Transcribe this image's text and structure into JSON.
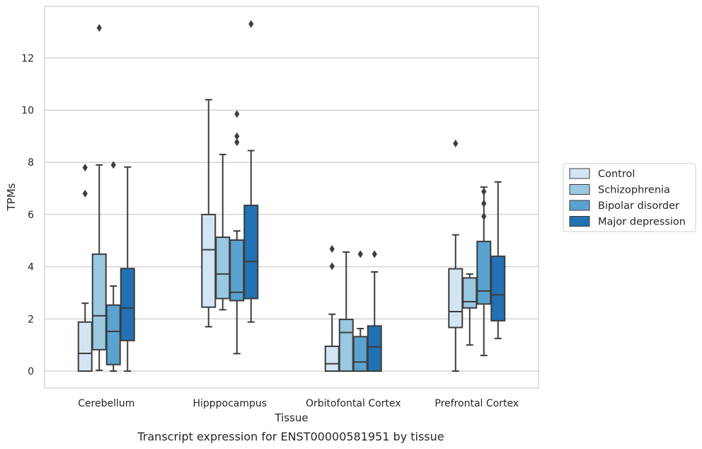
{
  "chart_data": {
    "type": "box",
    "caption": "Transcript expression for ENST00000581951 by tissue",
    "xlabel": "Tissue",
    "ylabel": "TPMs",
    "ylim": [
      -0.65,
      13.9
    ],
    "yticks": [
      "0",
      "2",
      "4",
      "6",
      "8",
      "10",
      "12"
    ],
    "grid": true,
    "legend_position": "right",
    "categories": [
      "Cerebellum",
      "Hipppocampus",
      "Orbitofontal Cortex",
      "Prefrontal Cortex"
    ],
    "series": [
      {
        "name": "Control",
        "color": "#d3e4f3",
        "boxes": [
          {
            "whisker_low": 0,
            "q1": 0,
            "median": 0.68,
            "q3": 1.88,
            "whisker_high": 2.6,
            "outliers": [
              6.8,
              7.8
            ]
          },
          {
            "whisker_low": 1.7,
            "q1": 2.45,
            "median": 4.65,
            "q3": 6.0,
            "whisker_high": 10.4,
            "outliers": []
          },
          {
            "whisker_low": 0,
            "q1": 0,
            "median": 0.28,
            "q3": 0.95,
            "whisker_high": 2.18,
            "outliers": [
              4.02,
              4.68
            ]
          },
          {
            "whisker_low": 0,
            "q1": 1.67,
            "median": 2.28,
            "q3": 3.92,
            "whisker_high": 5.22,
            "outliers": [
              8.72
            ]
          }
        ]
      },
      {
        "name": "Schizophrenia",
        "color": "#9ac8e0",
        "boxes": [
          {
            "whisker_low": 0.03,
            "q1": 0.82,
            "median": 2.12,
            "q3": 4.48,
            "whisker_high": 7.9,
            "outliers": [
              13.15
            ]
          },
          {
            "whisker_low": 2.35,
            "q1": 2.78,
            "median": 3.72,
            "q3": 5.13,
            "whisker_high": 8.3,
            "outliers": []
          },
          {
            "whisker_low": 0,
            "q1": 0,
            "median": 1.48,
            "q3": 1.98,
            "whisker_high": 4.56,
            "outliers": []
          },
          {
            "whisker_low": 1.0,
            "q1": 2.42,
            "median": 2.66,
            "q3": 3.57,
            "whisker_high": 3.72,
            "outliers": []
          }
        ]
      },
      {
        "name": "Bipolar disorder",
        "color": "#5aa2cf",
        "boxes": [
          {
            "whisker_low": 0,
            "q1": 0.25,
            "median": 1.52,
            "q3": 2.53,
            "whisker_high": 3.26,
            "outliers": [
              7.9
            ]
          },
          {
            "whisker_low": 0.67,
            "q1": 2.7,
            "median": 3.02,
            "q3": 5.02,
            "whisker_high": 5.37,
            "outliers": [
              8.77,
              9.0,
              9.85
            ]
          },
          {
            "whisker_low": 0,
            "q1": 0,
            "median": 0.35,
            "q3": 1.32,
            "whisker_high": 1.63,
            "outliers": [
              4.48
            ]
          },
          {
            "whisker_low": 0.6,
            "q1": 2.57,
            "median": 3.07,
            "q3": 4.97,
            "whisker_high": 7.05,
            "outliers": [
              5.93,
              6.42,
              6.88
            ]
          }
        ]
      },
      {
        "name": "Major depression",
        "color": "#2271b5",
        "boxes": [
          {
            "whisker_low": 0,
            "q1": 1.17,
            "median": 2.42,
            "q3": 3.93,
            "whisker_high": 7.82,
            "outliers": []
          },
          {
            "whisker_low": 1.88,
            "q1": 2.78,
            "median": 4.2,
            "q3": 6.35,
            "whisker_high": 8.45,
            "outliers": [
              13.3
            ]
          },
          {
            "whisker_low": 0,
            "q1": 0,
            "median": 0.93,
            "q3": 1.73,
            "whisker_high": 3.8,
            "outliers": [
              4.48
            ]
          },
          {
            "whisker_low": 1.25,
            "q1": 1.93,
            "median": 2.92,
            "q3": 4.4,
            "whisker_high": 7.25,
            "outliers": []
          }
        ]
      }
    ]
  }
}
